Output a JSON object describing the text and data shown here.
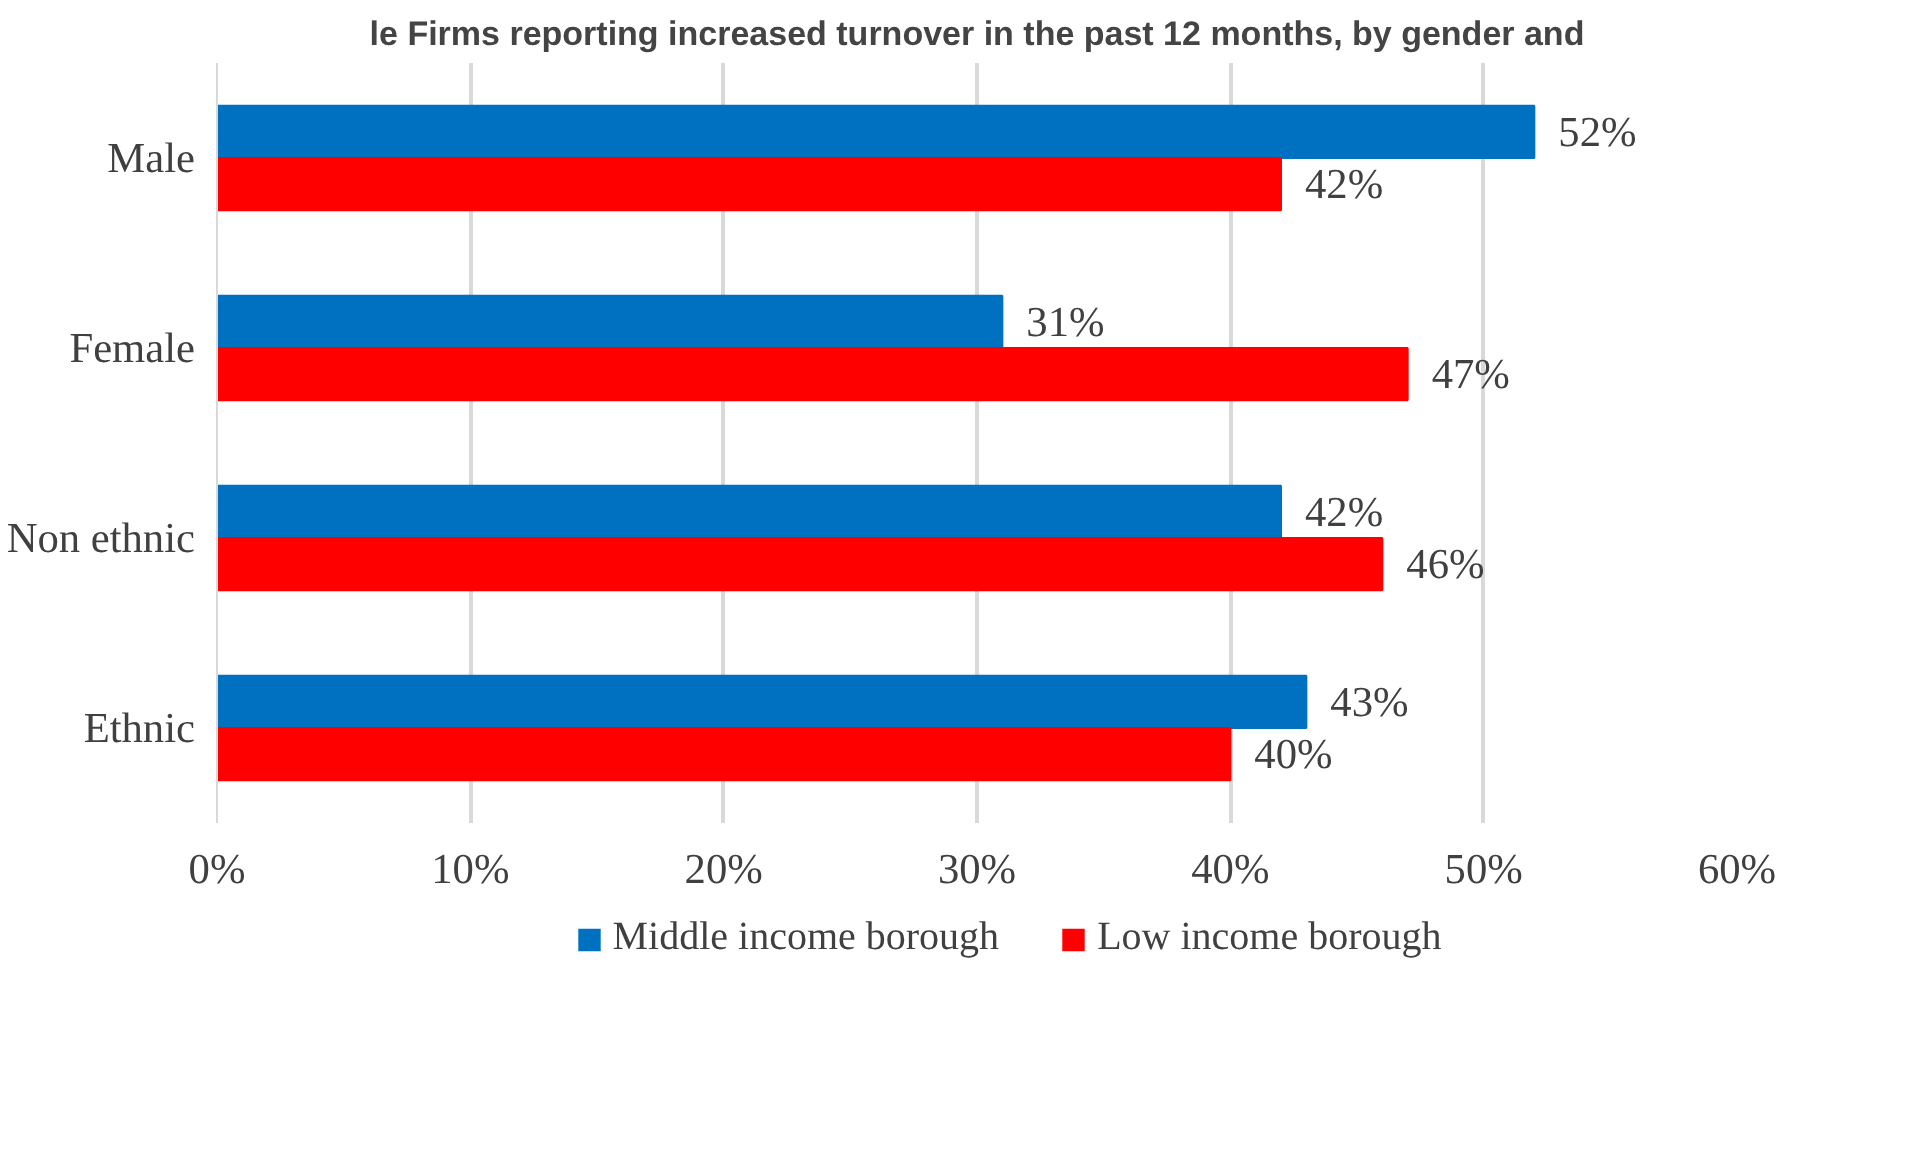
{
  "chart_data": {
    "type": "bar",
    "orientation": "horizontal",
    "title": "le Firms reporting increased turnover in the past 12 months, by gender and",
    "categories": [
      "Male",
      "Female",
      "Non ethnic",
      "Ethnic"
    ],
    "series": [
      {
        "name": "Middle income borough",
        "color": "#0070c0",
        "values": [
          52,
          31,
          42,
          43
        ],
        "value_labels": [
          "52%",
          "31%",
          "42%",
          "43%"
        ]
      },
      {
        "name": "Low income borough",
        "color": "#ff0000",
        "values": [
          42,
          47,
          46,
          40
        ],
        "value_labels": [
          "42%",
          "47%",
          "46%",
          "40%"
        ]
      }
    ],
    "xlim": [
      0,
      60
    ],
    "xticks": [
      {
        "value": 0,
        "label": "0%"
      },
      {
        "value": 10,
        "label": "10%"
      },
      {
        "value": 20,
        "label": "20%"
      },
      {
        "value": 30,
        "label": "30%"
      },
      {
        "value": 40,
        "label": "40%"
      },
      {
        "value": 50,
        "label": "50%"
      },
      {
        "value": 60,
        "label": "60%"
      }
    ],
    "grid": "x",
    "legend": "bottom"
  }
}
